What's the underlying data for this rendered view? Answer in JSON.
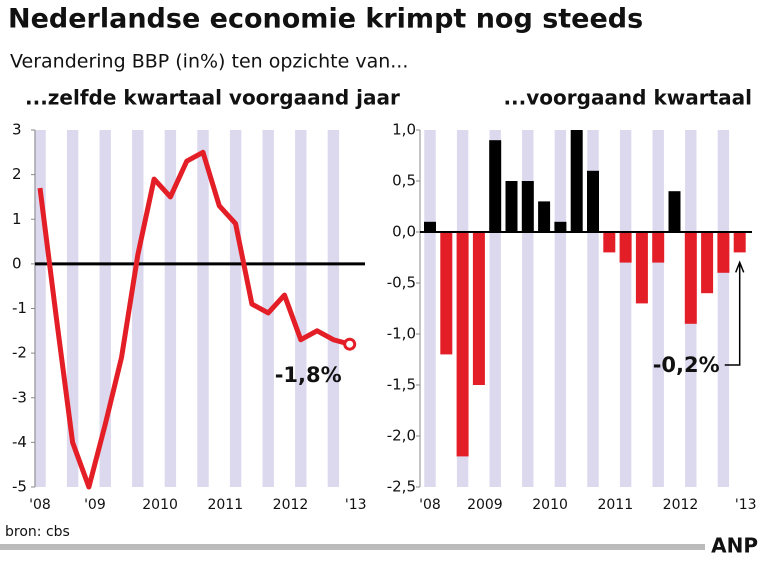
{
  "title": "Nederlandse economie krimpt nog steeds",
  "subtitle": "Verandering BBP (in%) ten opzichte van...",
  "source": "bron: cbs",
  "logo": "ANP",
  "chart_data": [
    {
      "type": "line",
      "title": "...zelfde kwartaal voorgaand jaar",
      "categories": [
        "'08",
        null,
        null,
        "'09",
        null,
        null,
        null,
        "2010",
        null,
        null,
        null,
        "2011",
        null,
        null,
        null,
        "2012",
        null,
        null,
        null,
        "'13"
      ],
      "values": [
        1.7,
        -1.2,
        -4.0,
        -5.0,
        -3.6,
        -2.1,
        0.2,
        1.9,
        1.5,
        2.3,
        2.5,
        1.3,
        0.9,
        -0.9,
        -1.1,
        -0.7,
        -1.7,
        -1.5,
        -1.7,
        -1.8
      ],
      "color": "#e41e26",
      "ylim": [
        -5,
        3
      ],
      "yticks": [
        -5,
        -4,
        -3,
        -2,
        -1,
        0,
        1,
        2,
        3
      ],
      "annotation": "-1,8%"
    },
    {
      "type": "bar",
      "title": "...voorgaand kwartaal",
      "categories": [
        "'08",
        null,
        null,
        "2009",
        null,
        null,
        null,
        "2010",
        null,
        null,
        null,
        "2011",
        null,
        null,
        null,
        "2012",
        null,
        null,
        null,
        "'13"
      ],
      "values": [
        0.1,
        -1.2,
        -2.2,
        -1.5,
        0.9,
        0.5,
        0.5,
        0.3,
        0.1,
        1.0,
        0.6,
        -0.2,
        -0.3,
        -0.7,
        -0.3,
        0.4,
        -0.9,
        -0.6,
        -0.4,
        -0.2
      ],
      "positive_color": "#000000",
      "negative_color": "#e41e26",
      "ylim": [
        -2.5,
        1.0
      ],
      "yticks": [
        {
          "value": -2.5,
          "label": "-2,5"
        },
        {
          "value": -2.0,
          "label": "-2,0"
        },
        {
          "value": -1.5,
          "label": "-1,5"
        },
        {
          "value": -1.0,
          "label": "-1,0"
        },
        {
          "value": -0.5,
          "label": "-0,5"
        },
        {
          "value": 0.0,
          "label": "0,0"
        },
        {
          "value": 0.5,
          "label": "0,5"
        },
        {
          "value": 1.0,
          "label": "1,0"
        }
      ],
      "annotation": "-0,2%"
    }
  ]
}
